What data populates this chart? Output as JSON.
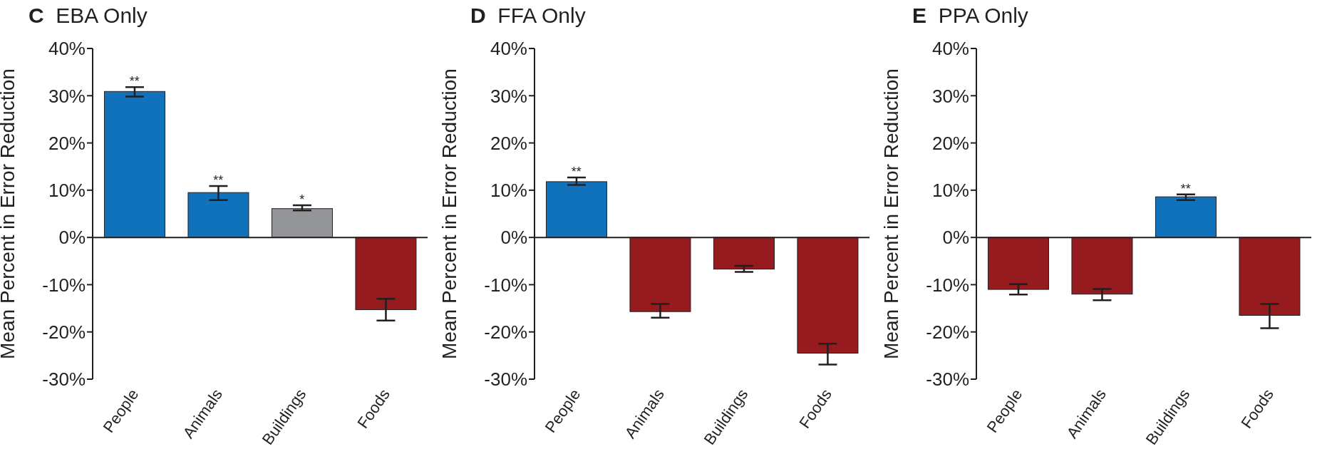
{
  "chart_data": [
    {
      "type": "bar",
      "title": "C EBA Only",
      "ylabel": "Mean Percent in Error Reduction",
      "categories": [
        "People",
        "Animals",
        "Buildings",
        "Foods"
      ],
      "values": [
        30.9,
        9.5,
        6.1,
        -15.3
      ],
      "colors": [
        "#1172bc",
        "#1172bc",
        "#939598",
        "#951b1e"
      ],
      "errors": [
        [
          29.8,
          31.8
        ],
        [
          7.9,
          10.9
        ],
        [
          5.7,
          6.8
        ],
        [
          -17.6,
          -13.0
        ]
      ],
      "ylim": [
        -30,
        40
      ],
      "yticks": [
        {
          "value": -30,
          "label": "-30%"
        },
        {
          "value": -20,
          "label": "-20%"
        },
        {
          "value": -10,
          "label": "-10%"
        },
        {
          "value": 0,
          "label": "0%"
        },
        {
          "value": 10,
          "label": "10%"
        },
        {
          "value": 20,
          "label": "20%"
        },
        {
          "value": 30,
          "label": "30%"
        },
        {
          "value": 40,
          "label": "40%"
        }
      ],
      "annotations": [
        {
          "text": "**",
          "x": "People",
          "y": 31.8
        },
        {
          "text": "**",
          "x": "Animals",
          "y": 10.9
        },
        {
          "text": "*",
          "x": "Buildings",
          "y": 6.8
        }
      ]
    },
    {
      "type": "bar",
      "title": "D FFA Only",
      "ylabel": "Mean Percent in Error Reduction",
      "categories": [
        "People",
        "Animals",
        "Buildings",
        "Foods"
      ],
      "values": [
        11.8,
        -15.7,
        -6.7,
        -24.5
      ],
      "colors": [
        "#1172bc",
        "#951b1e",
        "#951b1e",
        "#951b1e"
      ],
      "errors": [
        [
          11.1,
          12.7
        ],
        [
          -17.0,
          -14.1
        ],
        [
          -7.3,
          -6.0
        ],
        [
          -26.9,
          -22.5
        ]
      ],
      "ylim": [
        -30,
        40
      ],
      "yticks": [
        {
          "value": -30,
          "label": "-30%"
        },
        {
          "value": -20,
          "label": "-20%"
        },
        {
          "value": -10,
          "label": "-10%"
        },
        {
          "value": 0,
          "label": "0%"
        },
        {
          "value": 10,
          "label": "10%"
        },
        {
          "value": 20,
          "label": "20%"
        },
        {
          "value": 30,
          "label": "30%"
        },
        {
          "value": 40,
          "label": "40%"
        }
      ],
      "annotations": [
        {
          "text": "**",
          "x": "People",
          "y": 12.7
        }
      ]
    },
    {
      "type": "bar",
      "title": "E PPA Only",
      "ylabel": "Mean Percent in Error Reduction",
      "categories": [
        "People",
        "Animals",
        "Buildings",
        "Foods"
      ],
      "values": [
        -11.0,
        -12.0,
        8.6,
        -16.5
      ],
      "colors": [
        "#951b1e",
        "#951b1e",
        "#1172bc",
        "#951b1e"
      ],
      "errors": [
        [
          -12.1,
          -9.9
        ],
        [
          -13.3,
          -10.9
        ],
        [
          7.9,
          9.1
        ],
        [
          -19.2,
          -14.1
        ]
      ],
      "ylim": [
        -30,
        40
      ],
      "yticks": [
        {
          "value": -30,
          "label": "-30%"
        },
        {
          "value": -20,
          "label": "-20%"
        },
        {
          "value": -10,
          "label": "-10%"
        },
        {
          "value": 0,
          "label": "0%"
        },
        {
          "value": 10,
          "label": "10%"
        },
        {
          "value": 20,
          "label": "20%"
        },
        {
          "value": 30,
          "label": "30%"
        },
        {
          "value": 40,
          "label": "40%"
        }
      ],
      "annotations": [
        {
          "text": "**",
          "x": "Buildings",
          "y": 9.1
        }
      ]
    }
  ]
}
